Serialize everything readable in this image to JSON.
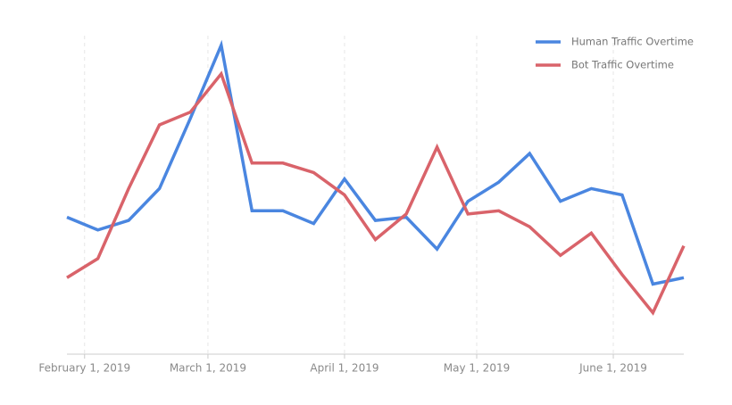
{
  "chart_data": {
    "type": "line",
    "x": [
      "2019-01-28",
      "2019-02-04",
      "2019-02-11",
      "2019-02-18",
      "2019-02-25",
      "2019-03-04",
      "2019-03-11",
      "2019-03-18",
      "2019-03-25",
      "2019-04-01",
      "2019-04-08",
      "2019-04-15",
      "2019-04-22",
      "2019-04-29",
      "2019-05-06",
      "2019-05-13",
      "2019-05-20",
      "2019-05-27",
      "2019-06-03",
      "2019-06-10",
      "2019-06-17"
    ],
    "xlim": [
      "2019-01-28",
      "2019-06-17"
    ],
    "xticks": [
      {
        "value": "2019-02-01",
        "label": "February 1, 2019"
      },
      {
        "value": "2019-03-01",
        "label": "March 1, 2019"
      },
      {
        "value": "2019-04-01",
        "label": "April 1, 2019"
      },
      {
        "value": "2019-05-01",
        "label": "May 1, 2019"
      },
      {
        "value": "2019-06-01",
        "label": "June 1, 2019"
      }
    ],
    "ylim": [
      0,
      100
    ],
    "grid": true,
    "legend": "top-right",
    "series": [
      {
        "name": "Human Traffic Overtime",
        "color": "#4a86e0",
        "values": [
          43,
          39,
          42,
          52,
          74,
          97,
          45,
          45,
          41,
          55,
          42,
          43,
          33,
          48,
          54,
          63,
          48,
          52,
          50,
          22,
          24
        ]
      },
      {
        "name": "Bot Traffic Overtime",
        "color": "#d9636a",
        "values": [
          24,
          30,
          52,
          72,
          76,
          88,
          60,
          60,
          57,
          50,
          36,
          44,
          65,
          44,
          45,
          40,
          31,
          38,
          25,
          13,
          34
        ]
      }
    ]
  }
}
